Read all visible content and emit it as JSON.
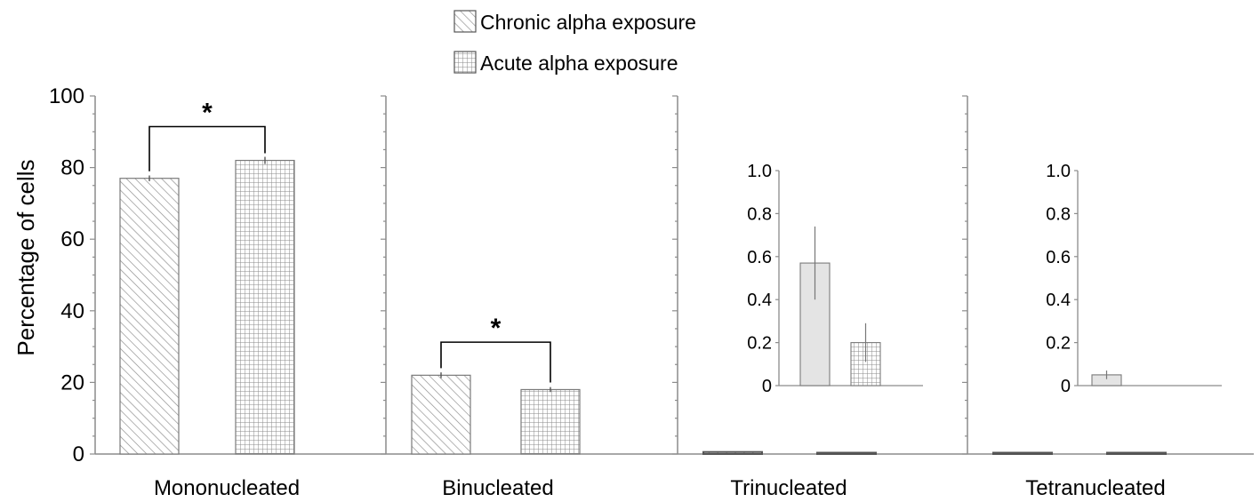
{
  "chart_data": {
    "type": "bar",
    "ylabel": "Percentage of cells",
    "ylim": [
      0,
      100
    ],
    "yticks": [
      0,
      20,
      40,
      60,
      80,
      100
    ],
    "legend": {
      "placement": "top-center",
      "entries": [
        {
          "name": "Chronic alpha exposure",
          "pattern": "diagonal-hatch"
        },
        {
          "name": "Acute alpha exposure",
          "pattern": "grid-hatch"
        }
      ]
    },
    "categories": [
      "Mononucleated",
      "Binucleated",
      "Trinucleated",
      "Tetranucleated"
    ],
    "series": [
      {
        "name": "Chronic alpha exposure",
        "values": [
          77,
          22,
          0.57,
          0.05
        ],
        "errors": [
          0.8,
          0.8,
          0.17,
          0.02
        ]
      },
      {
        "name": "Acute alpha exposure",
        "values": [
          82,
          18,
          0.2,
          0
        ],
        "errors": [
          1.0,
          0.7,
          0.09,
          0
        ]
      }
    ],
    "significance": [
      {
        "category": "Mononucleated",
        "label": "*"
      },
      {
        "category": "Binucleated",
        "label": "*"
      }
    ],
    "insets": [
      {
        "category": "Trinucleated",
        "ylim": [
          0,
          1.0
        ],
        "yticks": [
          "0",
          "0.2",
          "0.4",
          "0.6",
          "0.8",
          "1.0"
        ],
        "values": [
          0.57,
          0.2
        ],
        "errors": [
          0.17,
          0.09
        ]
      },
      {
        "category": "Tetranucleated",
        "ylim": [
          0,
          1.0
        ],
        "yticks": [
          "0",
          "0.2",
          "0.4",
          "0.6",
          "0.8",
          "1.0"
        ],
        "values": [
          0.05,
          0
        ],
        "errors": [
          0.02,
          0
        ]
      }
    ]
  },
  "colors": {
    "axis": "#8c8c8c",
    "bar_outline": "#7a7a7a",
    "hatch": "#8a8a8a",
    "inset_fill": "#e4e4e4",
    "text": "#000000"
  }
}
